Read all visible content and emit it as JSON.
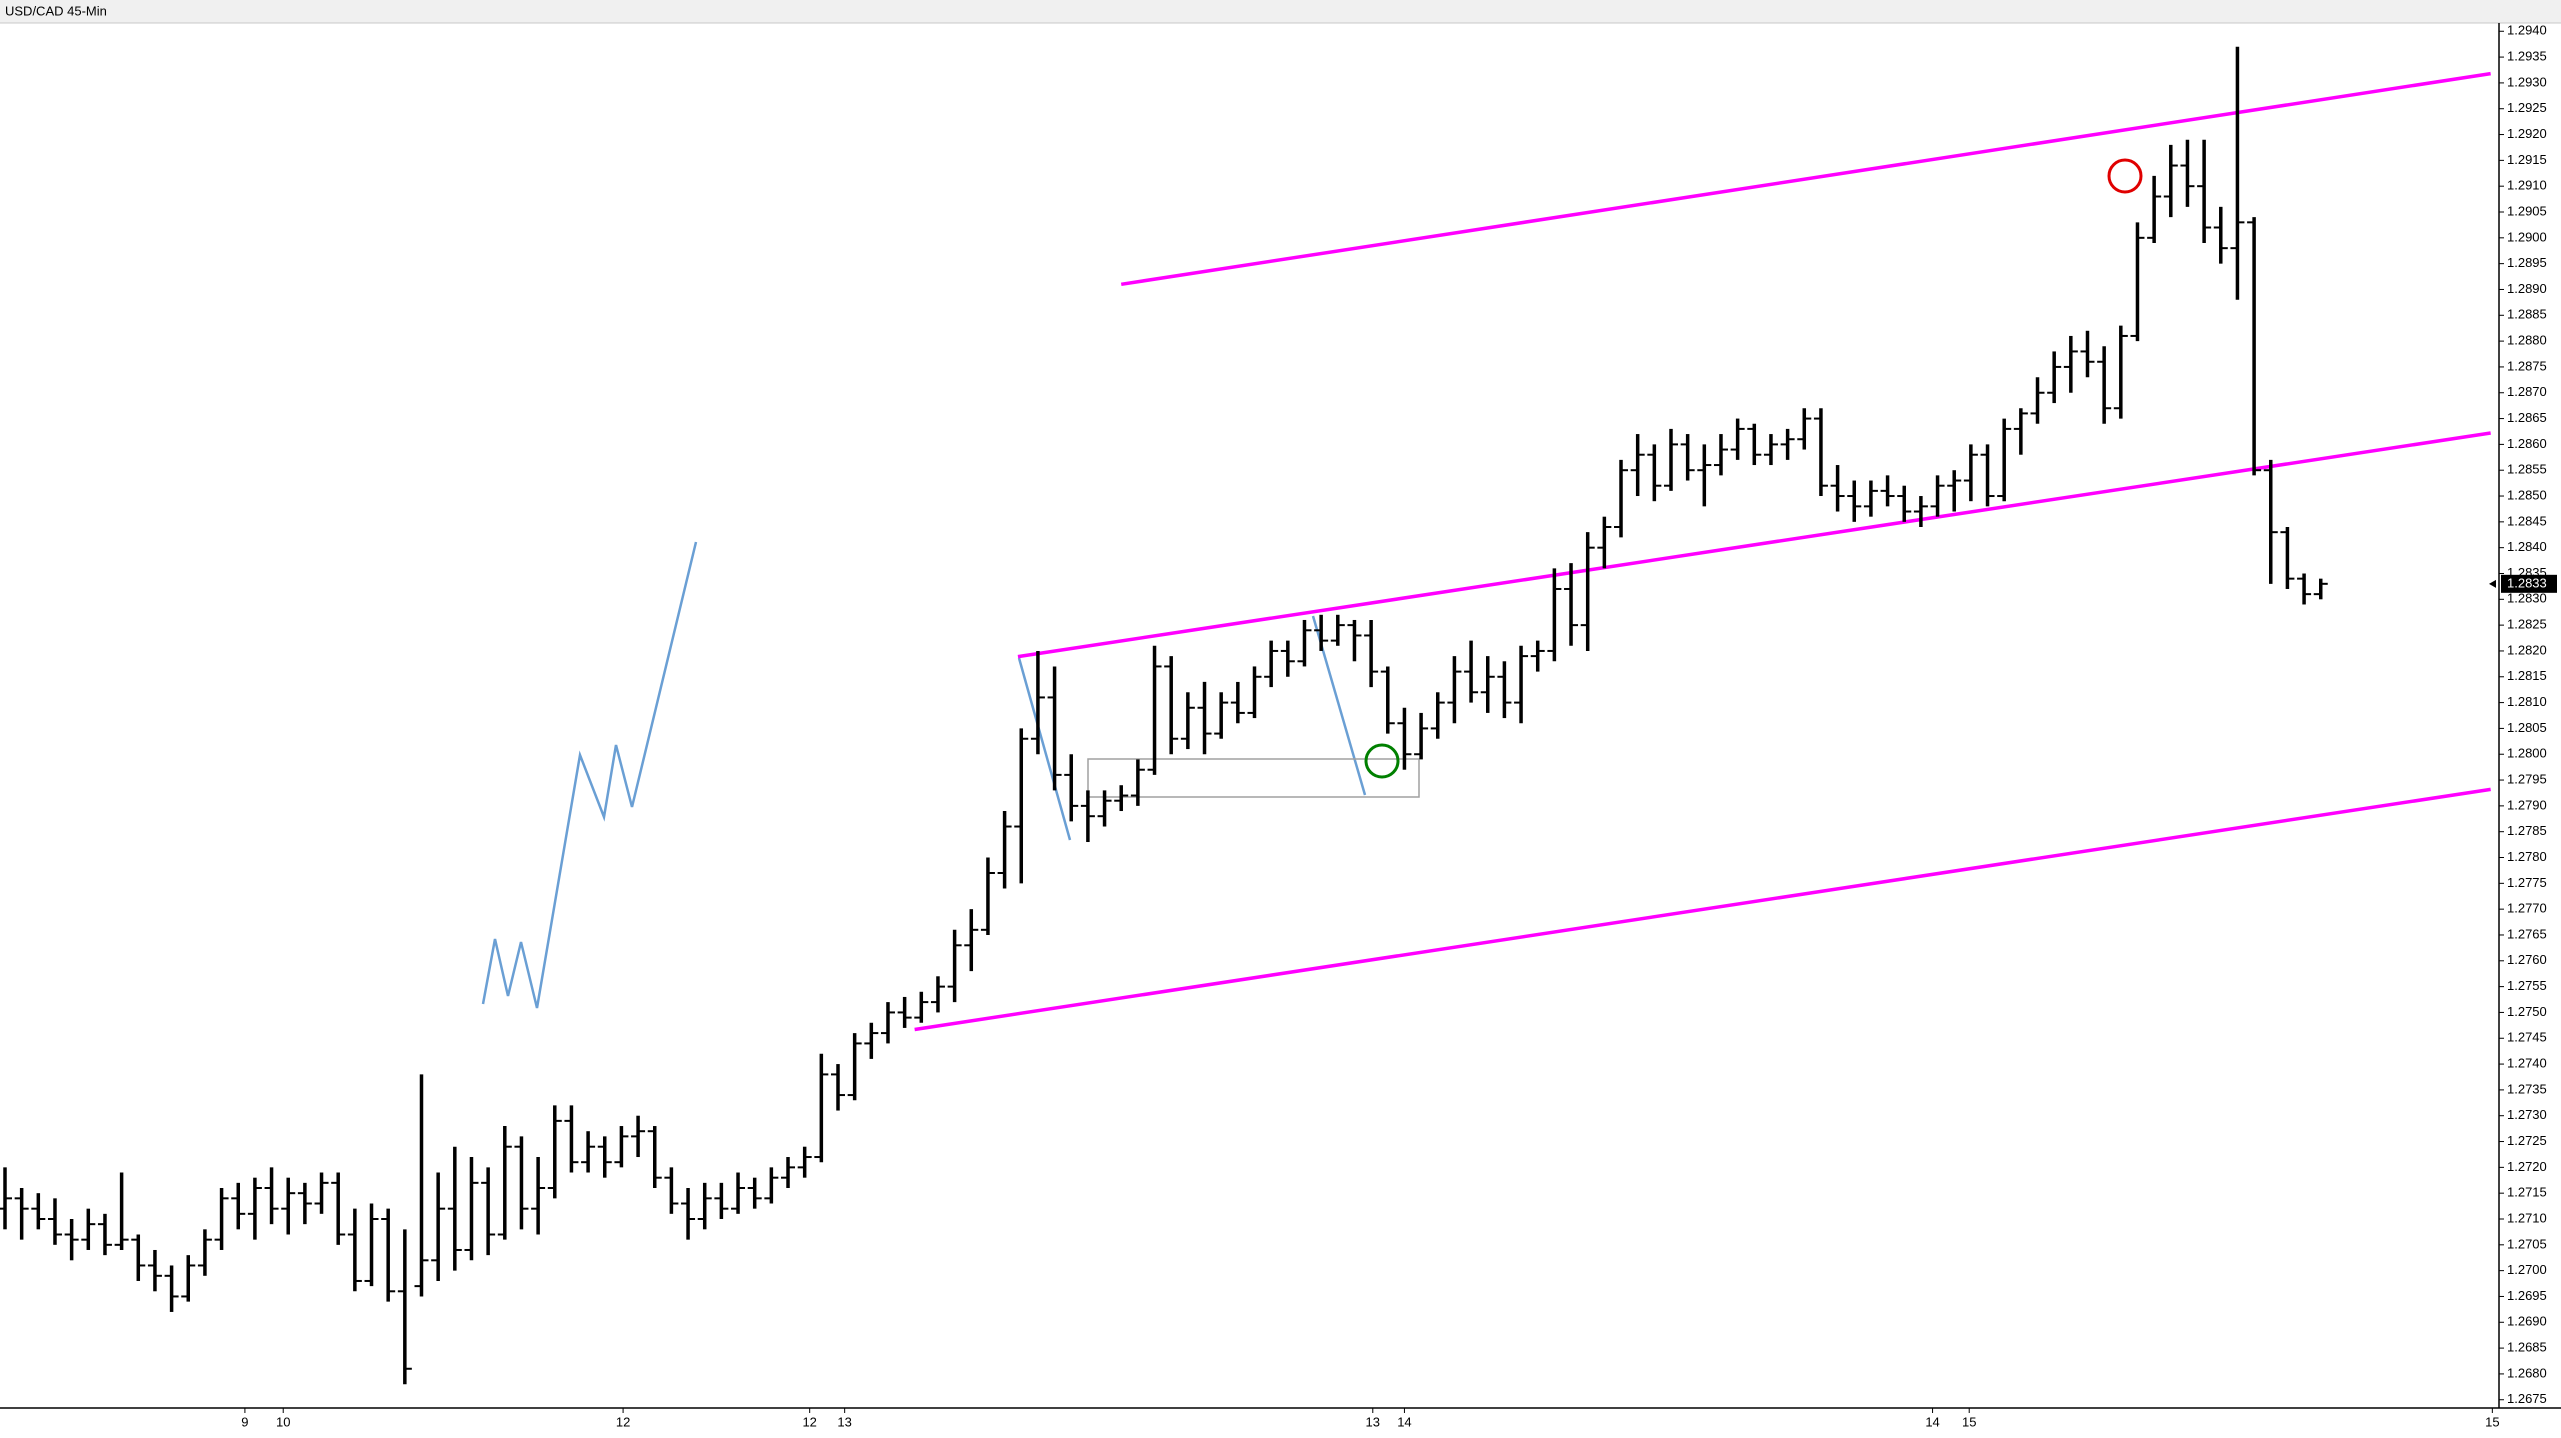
{
  "chart_data": {
    "type": "ohlc",
    "title": "USD/CAD 45-Min",
    "color": "#000000",
    "trend_color": "#ff00ff",
    "x": [
      0,
      1,
      2,
      3,
      4,
      5,
      6,
      7,
      8,
      9,
      10,
      11,
      12,
      13,
      14,
      15,
      16,
      17,
      18,
      19,
      20,
      21,
      22,
      23,
      24,
      25,
      26,
      27,
      28,
      29,
      30,
      31,
      32,
      33,
      34,
      35,
      36,
      37,
      38,
      39,
      40,
      41,
      42,
      43,
      44,
      45,
      46,
      47,
      48,
      49,
      50,
      51,
      52,
      53,
      54,
      55,
      56,
      57,
      58,
      59,
      60,
      61,
      62,
      63,
      64,
      65,
      66,
      67,
      68,
      69,
      70,
      71,
      72,
      73,
      74,
      75,
      76,
      77,
      78,
      79,
      80,
      81,
      82,
      83,
      84,
      85,
      86,
      87,
      88,
      89,
      90,
      91,
      92,
      93,
      94,
      95,
      96,
      97,
      98,
      99,
      100,
      101,
      102,
      103,
      104,
      105,
      106,
      107,
      108,
      109,
      110,
      111,
      112,
      113,
      114,
      115,
      116,
      117,
      118,
      119,
      120,
      121,
      122,
      123,
      124,
      125,
      126,
      127,
      128,
      129,
      130,
      131,
      132,
      133,
      134,
      135,
      136,
      137,
      138,
      139
    ],
    "ohlc": [
      [
        1.2712,
        1.272,
        1.2708,
        1.2714
      ],
      [
        1.2714,
        1.2716,
        1.2706,
        1.2712
      ],
      [
        1.2712,
        1.2715,
        1.2708,
        1.271
      ],
      [
        1.271,
        1.2714,
        1.2705,
        1.2707
      ],
      [
        1.2707,
        1.271,
        1.2702,
        1.2706
      ],
      [
        1.2706,
        1.2712,
        1.2704,
        1.2709
      ],
      [
        1.2709,
        1.2711,
        1.2703,
        1.2705
      ],
      [
        1.2705,
        1.2719,
        1.2704,
        1.2706
      ],
      [
        1.2706,
        1.2707,
        1.2698,
        1.2701
      ],
      [
        1.2701,
        1.2704,
        1.2696,
        1.2699
      ],
      [
        1.2699,
        1.2701,
        1.2692,
        1.2695
      ],
      [
        1.2695,
        1.2703,
        1.2694,
        1.2701
      ],
      [
        1.2701,
        1.2708,
        1.2699,
        1.2706
      ],
      [
        1.2706,
        1.2716,
        1.2704,
        1.2714
      ],
      [
        1.2714,
        1.2717,
        1.2708,
        1.2711
      ],
      [
        1.2711,
        1.2718,
        1.2706,
        1.2716
      ],
      [
        1.2716,
        1.272,
        1.2709,
        1.2712
      ],
      [
        1.2712,
        1.2718,
        1.2707,
        1.2715
      ],
      [
        1.2715,
        1.2717,
        1.2709,
        1.2713
      ],
      [
        1.2713,
        1.2719,
        1.2711,
        1.2717
      ],
      [
        1.2717,
        1.2719,
        1.2705,
        1.2707
      ],
      [
        1.2707,
        1.2712,
        1.2696,
        1.2698
      ],
      [
        1.2698,
        1.2713,
        1.2697,
        1.271
      ],
      [
        1.271,
        1.2712,
        1.2694,
        1.2696
      ],
      [
        1.2696,
        1.2708,
        1.2678,
        1.2681
      ],
      [
        1.2697,
        1.2738,
        1.2695,
        1.2702
      ],
      [
        1.2702,
        1.2719,
        1.2698,
        1.2712
      ],
      [
        1.2712,
        1.2724,
        1.27,
        1.2704
      ],
      [
        1.2704,
        1.2722,
        1.2702,
        1.2717
      ],
      [
        1.2717,
        1.272,
        1.2703,
        1.2707
      ],
      [
        1.2707,
        1.2728,
        1.2706,
        1.2724
      ],
      [
        1.2724,
        1.2726,
        1.2708,
        1.2712
      ],
      [
        1.2712,
        1.2722,
        1.2707,
        1.2716
      ],
      [
        1.2716,
        1.2732,
        1.2714,
        1.2729
      ],
      [
        1.2729,
        1.2732,
        1.2719,
        1.2721
      ],
      [
        1.2721,
        1.2727,
        1.2719,
        1.2724
      ],
      [
        1.2724,
        1.2726,
        1.2718,
        1.2721
      ],
      [
        1.2721,
        1.2728,
        1.272,
        1.2726
      ],
      [
        1.2726,
        1.273,
        1.2722,
        1.2727
      ],
      [
        1.2727,
        1.2728,
        1.2716,
        1.2718
      ],
      [
        1.2718,
        1.272,
        1.2711,
        1.2713
      ],
      [
        1.2713,
        1.2716,
        1.2706,
        1.271
      ],
      [
        1.271,
        1.2717,
        1.2708,
        1.2714
      ],
      [
        1.2714,
        1.2717,
        1.271,
        1.2712
      ],
      [
        1.2712,
        1.2719,
        1.2711,
        1.2716
      ],
      [
        1.2716,
        1.2718,
        1.2712,
        1.2714
      ],
      [
        1.2714,
        1.272,
        1.2713,
        1.2718
      ],
      [
        1.2718,
        1.2722,
        1.2716,
        1.272
      ],
      [
        1.272,
        1.2724,
        1.2718,
        1.2722
      ],
      [
        1.2722,
        1.2742,
        1.2721,
        1.2738
      ],
      [
        1.2738,
        1.274,
        1.2731,
        1.2734
      ],
      [
        1.2734,
        1.2746,
        1.2733,
        1.2744
      ],
      [
        1.2744,
        1.2748,
        1.2741,
        1.2746
      ],
      [
        1.2746,
        1.2752,
        1.2744,
        1.275
      ],
      [
        1.275,
        1.2753,
        1.2747,
        1.2749
      ],
      [
        1.2749,
        1.2754,
        1.2748,
        1.2752
      ],
      [
        1.2752,
        1.2757,
        1.275,
        1.2755
      ],
      [
        1.2755,
        1.2766,
        1.2752,
        1.2763
      ],
      [
        1.2763,
        1.277,
        1.2758,
        1.2766
      ],
      [
        1.2766,
        1.278,
        1.2765,
        1.2777
      ],
      [
        1.2777,
        1.2789,
        1.2774,
        1.2786
      ],
      [
        1.2786,
        1.2805,
        1.2775,
        1.2803
      ],
      [
        1.2803,
        1.282,
        1.28,
        1.2811
      ],
      [
        1.2811,
        1.2817,
        1.2793,
        1.2796
      ],
      [
        1.2796,
        1.28,
        1.2787,
        1.279
      ],
      [
        1.279,
        1.2793,
        1.2783,
        1.2788
      ],
      [
        1.2788,
        1.2793,
        1.2786,
        1.2791
      ],
      [
        1.2791,
        1.2794,
        1.2789,
        1.2792
      ],
      [
        1.2792,
        1.2799,
        1.279,
        1.2797
      ],
      [
        1.2797,
        1.2821,
        1.2796,
        1.2817
      ],
      [
        1.2817,
        1.2819,
        1.28,
        1.2803
      ],
      [
        1.2803,
        1.2812,
        1.2801,
        1.2809
      ],
      [
        1.2809,
        1.2814,
        1.28,
        1.2804
      ],
      [
        1.2804,
        1.2812,
        1.2803,
        1.281
      ],
      [
        1.281,
        1.2814,
        1.2806,
        1.2808
      ],
      [
        1.2808,
        1.2817,
        1.2807,
        1.2815
      ],
      [
        1.2815,
        1.2822,
        1.2813,
        1.282
      ],
      [
        1.282,
        1.2822,
        1.2815,
        1.2818
      ],
      [
        1.2818,
        1.2826,
        1.2817,
        1.2824
      ],
      [
        1.2824,
        1.2827,
        1.282,
        1.2822
      ],
      [
        1.2822,
        1.2827,
        1.2821,
        1.2825
      ],
      [
        1.2825,
        1.2826,
        1.2818,
        1.2823
      ],
      [
        1.2823,
        1.2826,
        1.2813,
        1.2816
      ],
      [
        1.2816,
        1.2817,
        1.2804,
        1.2806
      ],
      [
        1.2806,
        1.2809,
        1.2797,
        1.28
      ],
      [
        1.28,
        1.2808,
        1.2799,
        1.2805
      ],
      [
        1.2805,
        1.2812,
        1.2803,
        1.281
      ],
      [
        1.281,
        1.2819,
        1.2806,
        1.2816
      ],
      [
        1.2816,
        1.2822,
        1.281,
        1.2812
      ],
      [
        1.2812,
        1.2819,
        1.2808,
        1.2815
      ],
      [
        1.2815,
        1.2818,
        1.2807,
        1.281
      ],
      [
        1.281,
        1.2821,
        1.2806,
        1.2819
      ],
      [
        1.2819,
        1.2822,
        1.2816,
        1.282
      ],
      [
        1.282,
        1.2836,
        1.2818,
        1.2832
      ],
      [
        1.2832,
        1.2837,
        1.2821,
        1.2825
      ],
      [
        1.2825,
        1.2843,
        1.282,
        1.284
      ],
      [
        1.284,
        1.2846,
        1.2836,
        1.2844
      ],
      [
        1.2844,
        1.2857,
        1.2842,
        1.2855
      ],
      [
        1.2855,
        1.2862,
        1.285,
        1.2858
      ],
      [
        1.2858,
        1.286,
        1.2849,
        1.2852
      ],
      [
        1.2852,
        1.2863,
        1.2851,
        1.286
      ],
      [
        1.286,
        1.2862,
        1.2853,
        1.2855
      ],
      [
        1.2855,
        1.286,
        1.2848,
        1.2856
      ],
      [
        1.2856,
        1.2862,
        1.2854,
        1.2859
      ],
      [
        1.2859,
        1.2865,
        1.2857,
        1.2863
      ],
      [
        1.2863,
        1.2864,
        1.2856,
        1.2858
      ],
      [
        1.2858,
        1.2862,
        1.2856,
        1.286
      ],
      [
        1.286,
        1.2863,
        1.2857,
        1.2861
      ],
      [
        1.2861,
        1.2867,
        1.2859,
        1.2865
      ],
      [
        1.2865,
        1.2867,
        1.285,
        1.2852
      ],
      [
        1.2852,
        1.2856,
        1.2847,
        1.285
      ],
      [
        1.285,
        1.2853,
        1.2845,
        1.2848
      ],
      [
        1.2848,
        1.2853,
        1.2846,
        1.2851
      ],
      [
        1.2851,
        1.2854,
        1.2848,
        1.285
      ],
      [
        1.285,
        1.2852,
        1.2845,
        1.2847
      ],
      [
        1.2847,
        1.285,
        1.2844,
        1.2848
      ],
      [
        1.2848,
        1.2854,
        1.2846,
        1.2852
      ],
      [
        1.2852,
        1.2855,
        1.2847,
        1.2853
      ],
      [
        1.2853,
        1.286,
        1.2849,
        1.2858
      ],
      [
        1.2858,
        1.286,
        1.2848,
        1.285
      ],
      [
        1.285,
        1.2865,
        1.2849,
        1.2863
      ],
      [
        1.2863,
        1.2867,
        1.2858,
        1.2866
      ],
      [
        1.2866,
        1.2873,
        1.2864,
        1.287
      ],
      [
        1.287,
        1.2878,
        1.2868,
        1.2875
      ],
      [
        1.2875,
        1.2881,
        1.287,
        1.2878
      ],
      [
        1.2878,
        1.2882,
        1.2873,
        1.2876
      ],
      [
        1.2876,
        1.2879,
        1.2864,
        1.2867
      ],
      [
        1.2867,
        1.2883,
        1.2865,
        1.2881
      ],
      [
        1.2881,
        1.2903,
        1.288,
        1.29
      ],
      [
        1.29,
        1.2912,
        1.2899,
        1.2908
      ],
      [
        1.2908,
        1.2918,
        1.2904,
        1.2914
      ],
      [
        1.2914,
        1.2919,
        1.2906,
        1.291
      ],
      [
        1.291,
        1.2919,
        1.2899,
        1.2902
      ],
      [
        1.2902,
        1.2906,
        1.2895,
        1.2898
      ],
      [
        1.2898,
        1.2937,
        1.2888,
        1.2903
      ],
      [
        1.2903,
        1.2904,
        1.2854,
        1.2855
      ],
      [
        1.2855,
        1.2857,
        1.2833,
        1.2843
      ],
      [
        1.2843,
        1.2844,
        1.2832,
        1.2834
      ],
      [
        1.2834,
        1.2835,
        1.2829,
        1.2831
      ],
      [
        1.2831,
        1.2834,
        1.283,
        1.2833
      ]
    ],
    "last_price": 1.2833,
    "trendlines": [
      {
        "x": [
          67.0,
          149.2
        ],
        "y": [
          1.2891,
          1.29318
        ]
      },
      {
        "x": [
          60.8,
          149.2
        ],
        "y": [
          1.28189,
          1.28622
        ]
      },
      {
        "x": [
          54.6,
          149.2
        ],
        "y": [
          1.27467,
          1.27932
        ]
      }
    ],
    "xlim": [
      -0.3,
      149.7
    ],
    "xticks": [
      {
        "value": 14.4,
        "label": "9"
      },
      {
        "value": 16.7,
        "label": "10"
      },
      {
        "value": 37.1,
        "label": "12"
      },
      {
        "value": 48.3,
        "label": "12"
      },
      {
        "value": 50.4,
        "label": "13"
      },
      {
        "value": 82.1,
        "label": "13"
      },
      {
        "value": 84.0,
        "label": "14"
      },
      {
        "value": 115.7,
        "label": "14"
      },
      {
        "value": 117.9,
        "label": "15"
      },
      {
        "value": 149.3,
        "label": "15"
      }
    ],
    "ylim": [
      1.26734,
      1.29416
    ],
    "yticks": [
      {
        "value": 1.294,
        "label": "1.2940"
      },
      {
        "value": 1.2935,
        "label": "1.2935"
      },
      {
        "value": 1.293,
        "label": "1.2930"
      },
      {
        "value": 1.2925,
        "label": "1.2925"
      },
      {
        "value": 1.292,
        "label": "1.2920"
      },
      {
        "value": 1.2915,
        "label": "1.2915"
      },
      {
        "value": 1.291,
        "label": "1.2910"
      },
      {
        "value": 1.2905,
        "label": "1.2905"
      },
      {
        "value": 1.29,
        "label": "1.2900"
      },
      {
        "value": 1.2895,
        "label": "1.2895"
      },
      {
        "value": 1.289,
        "label": "1.2890"
      },
      {
        "value": 1.2885,
        "label": "1.2885"
      },
      {
        "value": 1.288,
        "label": "1.2880"
      },
      {
        "value": 1.2875,
        "label": "1.2875"
      },
      {
        "value": 1.287,
        "label": "1.2870"
      },
      {
        "value": 1.2865,
        "label": "1.2865"
      },
      {
        "value": 1.286,
        "label": "1.2860"
      },
      {
        "value": 1.2855,
        "label": "1.2855"
      },
      {
        "value": 1.285,
        "label": "1.2850"
      },
      {
        "value": 1.2845,
        "label": "1.2845"
      },
      {
        "value": 1.284,
        "label": "1.2840"
      },
      {
        "value": 1.2835,
        "label": "1.2835"
      },
      {
        "value": 1.283,
        "label": "1.2830"
      },
      {
        "value": 1.2825,
        "label": "1.2825"
      },
      {
        "value": 1.282,
        "label": "1.2820"
      },
      {
        "value": 1.2815,
        "label": "1.2815"
      },
      {
        "value": 1.281,
        "label": "1.2810"
      },
      {
        "value": 1.2805,
        "label": "1.2805"
      },
      {
        "value": 1.28,
        "label": "1.2800"
      },
      {
        "value": 1.2795,
        "label": "1.2795"
      },
      {
        "value": 1.279,
        "label": "1.2790"
      },
      {
        "value": 1.2785,
        "label": "1.2785"
      },
      {
        "value": 1.278,
        "label": "1.2780"
      },
      {
        "value": 1.2775,
        "label": "1.2775"
      },
      {
        "value": 1.277,
        "label": "1.2770"
      },
      {
        "value": 1.2765,
        "label": "1.2765"
      },
      {
        "value": 1.276,
        "label": "1.2760"
      },
      {
        "value": 1.2755,
        "label": "1.2755"
      },
      {
        "value": 1.275,
        "label": "1.2750"
      },
      {
        "value": 1.2745,
        "label": "1.2745"
      },
      {
        "value": 1.274,
        "label": "1.2740"
      },
      {
        "value": 1.2735,
        "label": "1.2735"
      },
      {
        "value": 1.273,
        "label": "1.2730"
      },
      {
        "value": 1.2725,
        "label": "1.2725"
      },
      {
        "value": 1.272,
        "label": "1.2720"
      },
      {
        "value": 1.2715,
        "label": "1.2715"
      },
      {
        "value": 1.271,
        "label": "1.2710"
      },
      {
        "value": 1.2705,
        "label": "1.2705"
      },
      {
        "value": 1.27,
        "label": "1.2700"
      },
      {
        "value": 1.2695,
        "label": "1.2695"
      },
      {
        "value": 1.269,
        "label": "1.2690"
      },
      {
        "value": 1.2685,
        "label": "1.2685"
      },
      {
        "value": 1.268,
        "label": "1.2680"
      },
      {
        "value": 1.2675,
        "label": "1.2675"
      }
    ]
  }
}
